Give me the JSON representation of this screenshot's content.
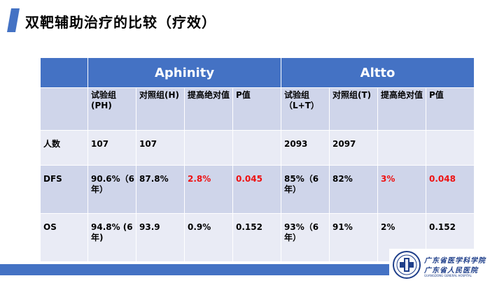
{
  "title": "双靶辅助治疗的比较（疗效）",
  "colors": {
    "accent": "#4472c4",
    "header_bg": "#4472c4",
    "band_dark": "#cfd5ea",
    "band_light": "#e9ebf5",
    "highlight_red": "#ee1111"
  },
  "table": {
    "groups": [
      "Aphinity",
      "Altto"
    ],
    "subheaders": [
      "",
      "试验组 (PH)",
      "对照组(H)",
      "提高绝对值",
      "P值",
      "试验组（L+T）",
      "对照组(T)",
      "提高绝对值",
      "P值"
    ],
    "rows": [
      {
        "label": "人数",
        "cells": [
          "107",
          "107",
          "",
          "",
          "2093",
          "2097",
          "",
          ""
        ]
      },
      {
        "label": "DFS",
        "cells": [
          "90.6%（6年）",
          "87.8%",
          "2.8%",
          "0.045",
          "85%（6年）",
          "82%",
          "3%",
          "0.048"
        ]
      },
      {
        "label": "OS",
        "cells": [
          "94.8% (6年)",
          "93.9",
          "0.9%",
          "0.152",
          "93%（6年）",
          "91%",
          "2%",
          "0.152"
        ]
      }
    ]
  },
  "logo": {
    "name_line1": "广东省医学科学院",
    "name_line2": "广东省人民医院",
    "name_en": "GUANGDONG GENERAL HOSPITAL",
    "icon": "hospital-emblem-icon"
  }
}
